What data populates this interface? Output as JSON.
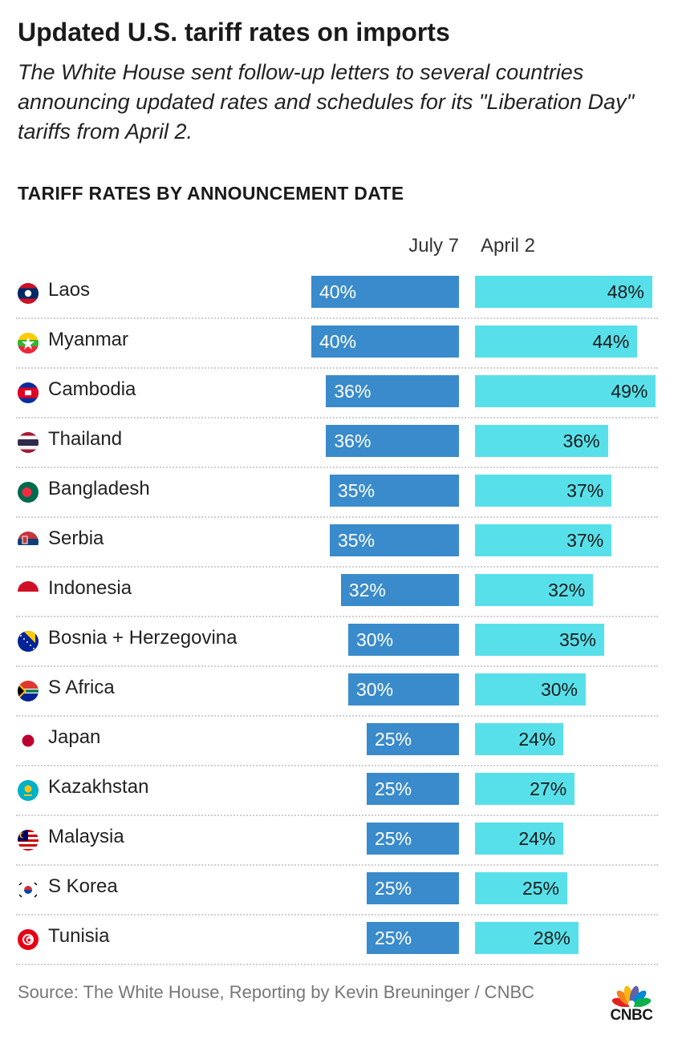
{
  "header": {
    "title": "Updated U.S. tariff rates on imports",
    "subtitle": "The White House sent follow-up letters to several countries announcing updated rates and schedules for its \"Liberation Day\" tariffs from April 2.",
    "section": "TARIFF RATES BY ANNOUNCEMENT DATE"
  },
  "chart_data": {
    "type": "bar",
    "orientation": "horizontal",
    "title": "TARIFF RATES BY ANNOUNCEMENT DATE",
    "categories": [
      "Laos",
      "Myanmar",
      "Cambodia",
      "Thailand",
      "Bangladesh",
      "Serbia",
      "Indonesia",
      "Bosnia + Herzegovina",
      "S Africa",
      "Japan",
      "Kazakhstan",
      "Malaysia",
      "S Korea",
      "Tunisia"
    ],
    "series": [
      {
        "name": "July 7",
        "color": "#3a8bcb",
        "values": [
          40,
          40,
          36,
          36,
          35,
          35,
          32,
          30,
          30,
          25,
          25,
          25,
          25,
          25
        ]
      },
      {
        "name": "April 2",
        "color": "#58e0ea",
        "values": [
          48,
          44,
          49,
          36,
          37,
          37,
          32,
          35,
          30,
          24,
          27,
          24,
          25,
          28
        ]
      }
    ],
    "value_suffix": "%",
    "xlim": [
      0,
      50
    ]
  },
  "flags": [
    "laos-flag-icon",
    "myanmar-flag-icon",
    "cambodia-flag-icon",
    "thailand-flag-icon",
    "bangladesh-flag-icon",
    "serbia-flag-icon",
    "indonesia-flag-icon",
    "bosnia-flag-icon",
    "south-africa-flag-icon",
    "japan-flag-icon",
    "kazakhstan-flag-icon",
    "malaysia-flag-icon",
    "south-korea-flag-icon",
    "tunisia-flag-icon"
  ],
  "footer": {
    "source": "Source: The White House, Reporting by Kevin Breuninger / CNBC",
    "logo_text": "CNBC",
    "logo_icon": "cnbc-peacock-icon"
  }
}
